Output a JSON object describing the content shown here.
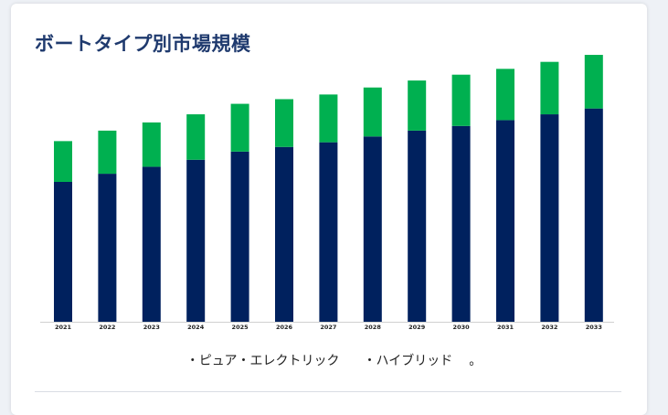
{
  "title": "ボートタイプ別市場規模",
  "legend": {
    "item1": "・ピュア・エレクトリック",
    "item2": "・ハイブリッド",
    "trailing": "。"
  },
  "chart_data": {
    "type": "bar",
    "stacked": true,
    "title": "ボートタイプ別市場規模",
    "categories": [
      "2021",
      "2022",
      "2023",
      "2024",
      "2025",
      "2026",
      "2027",
      "2028",
      "2029",
      "2030",
      "2031",
      "2032",
      "2033"
    ],
    "series": [
      {
        "name": "ピュア・エレクトリック",
        "color": "#00215e",
        "values": [
          120,
          127,
          133,
          139,
          146,
          150,
          154,
          159,
          164,
          168,
          173,
          178,
          183
        ]
      },
      {
        "name": "ハイブリッド",
        "color": "#00b050",
        "values": [
          35,
          37,
          38,
          39,
          41,
          41,
          41,
          42,
          43,
          44,
          44,
          45,
          46
        ]
      }
    ],
    "ylim": [
      0,
      240
    ],
    "grid": false,
    "legend_position": "bottom"
  }
}
